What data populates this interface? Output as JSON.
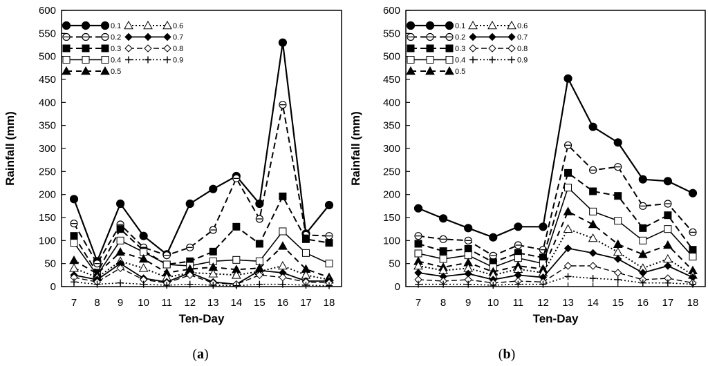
{
  "chart_data": [
    {
      "type": "line",
      "panel_label_open": "(",
      "panel_label_letter": "a",
      "panel_label_close": ")",
      "xlabel": "Ten-Day",
      "ylabel": "Rainfall (mm)",
      "x": [
        7,
        8,
        9,
        10,
        11,
        12,
        13,
        14,
        15,
        16,
        17,
        18
      ],
      "xlim": [
        7,
        18
      ],
      "ylim": [
        0,
        600
      ],
      "yticks": [
        0,
        50,
        100,
        150,
        200,
        250,
        300,
        350,
        400,
        450,
        500,
        550,
        600
      ],
      "series": [
        {
          "name": "0.1",
          "values": [
            190,
            55,
            180,
            110,
            70,
            180,
            212,
            240,
            180,
            530,
            115,
            177
          ]
        },
        {
          "name": "0.2",
          "values": [
            137,
            50,
            135,
            85,
            68,
            85,
            123,
            235,
            147,
            395,
            112,
            110
          ]
        },
        {
          "name": "0.3",
          "values": [
            110,
            30,
            125,
            78,
            48,
            55,
            76,
            130,
            93,
            196,
            103,
            95
          ]
        },
        {
          "name": "0.4",
          "values": [
            95,
            25,
            100,
            75,
            48,
            45,
            55,
            58,
            55,
            120,
            73,
            50
          ]
        },
        {
          "name": "0.5",
          "values": [
            57,
            28,
            75,
            60,
            30,
            38,
            42,
            37,
            40,
            88,
            38,
            20
          ]
        },
        {
          "name": "0.6",
          "values": [
            40,
            20,
            55,
            40,
            20,
            30,
            28,
            25,
            33,
            45,
            25,
            15
          ]
        },
        {
          "name": "0.7",
          "values": [
            25,
            15,
            50,
            18,
            10,
            30,
            10,
            5,
            35,
            30,
            12,
            12
          ]
        },
        {
          "name": "0.8",
          "values": [
            20,
            10,
            40,
            15,
            8,
            25,
            8,
            5,
            25,
            20,
            10,
            8
          ]
        },
        {
          "name": "0.9",
          "values": [
            10,
            5,
            8,
            5,
            3,
            5,
            3,
            2,
            5,
            5,
            3,
            2
          ]
        }
      ]
    },
    {
      "type": "line",
      "panel_label_open": "(",
      "panel_label_letter": "b",
      "panel_label_close": ")",
      "xlabel": "Ten-Day",
      "ylabel": "Rainfall (mm)",
      "x": [
        7,
        8,
        9,
        10,
        11,
        12,
        13,
        14,
        15,
        16,
        17,
        18
      ],
      "xlim": [
        7,
        18
      ],
      "ylim": [
        0,
        600
      ],
      "yticks": [
        0,
        50,
        100,
        150,
        200,
        250,
        300,
        350,
        400,
        450,
        500,
        550,
        600
      ],
      "series": [
        {
          "name": "0.1",
          "values": [
            170,
            148,
            127,
            107,
            130,
            130,
            452,
            347,
            313,
            233,
            229,
            203
          ]
        },
        {
          "name": "0.2",
          "values": [
            110,
            103,
            100,
            67,
            90,
            80,
            307,
            253,
            260,
            175,
            180,
            118
          ]
        },
        {
          "name": "0.3",
          "values": [
            93,
            77,
            82,
            53,
            73,
            63,
            247,
            207,
            197,
            127,
            155,
            80
          ]
        },
        {
          "name": "0.4",
          "values": [
            72,
            60,
            68,
            42,
            62,
            50,
            215,
            163,
            143,
            100,
            125,
            65
          ]
        },
        {
          "name": "0.5",
          "values": [
            55,
            42,
            52,
            32,
            45,
            38,
            163,
            135,
            92,
            70,
            90,
            35
          ]
        },
        {
          "name": "0.6",
          "values": [
            45,
            35,
            40,
            25,
            38,
            30,
            125,
            105,
            75,
            40,
            60,
            25
          ]
        },
        {
          "name": "0.7",
          "values": [
            30,
            22,
            28,
            15,
            25,
            20,
            83,
            73,
            60,
            30,
            45,
            20
          ]
        },
        {
          "name": "0.8",
          "values": [
            15,
            12,
            15,
            8,
            12,
            10,
            45,
            45,
            30,
            15,
            18,
            8
          ]
        },
        {
          "name": "0.9",
          "values": [
            5,
            5,
            5,
            3,
            5,
            5,
            22,
            18,
            15,
            8,
            8,
            5
          ]
        }
      ]
    }
  ],
  "colors": {
    "line": "#000000",
    "background": "#ffffff"
  }
}
